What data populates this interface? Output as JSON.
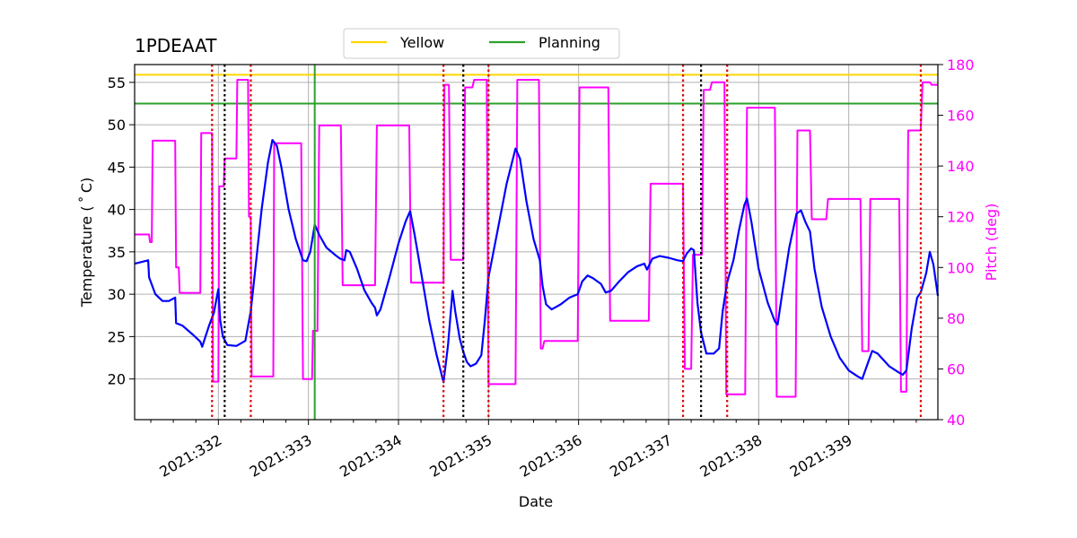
{
  "chart_data": {
    "type": "line",
    "title": "1PDEAAT",
    "xlabel": "Date",
    "ylabel": "Temperature ($^\\circ$C)",
    "ylabel_display": "Temperature ( ˚ C)",
    "y2label": "Pitch (deg)",
    "xlim": [
      331.07,
      339.99
    ],
    "ylim": [
      15.2,
      57.1
    ],
    "y2lim": [
      40,
      180
    ],
    "x_ticks": [
      332,
      333,
      334,
      335,
      336,
      337,
      338,
      339
    ],
    "x_tick_labels": [
      "2021:332",
      "2021:333",
      "2021:334",
      "2021:335",
      "2021:336",
      "2021:337",
      "2021:338",
      "2021:339"
    ],
    "y_ticks": [
      20,
      25,
      30,
      35,
      40,
      45,
      50,
      55
    ],
    "y2_ticks": [
      40,
      60,
      80,
      100,
      120,
      140,
      160,
      180
    ],
    "grid": true,
    "legend": {
      "placement": "top-center",
      "entries": [
        {
          "label": "Yellow",
          "color": "#ffd700"
        },
        {
          "label": "Planning",
          "color": "#2ca02c"
        }
      ]
    },
    "limits": {
      "yellow": 55.9,
      "planning": 52.5
    },
    "colors": {
      "temperature": "#0000ff",
      "pitch": "#ff00ff",
      "yellow": "#ffd700",
      "planning": "#2ca02c",
      "red_lines": "#e00000",
      "black_lines": "#000000",
      "grid": "#b0b0b0"
    },
    "red_dotted_lines": [
      331.93,
      332.36,
      334.5,
      335.0,
      337.16,
      337.65,
      339.8
    ],
    "black_dotted_lines": [
      332.07,
      334.72,
      337.36
    ],
    "green_vertical_lines": [
      333.07
    ],
    "series": [
      {
        "name": "Temperature",
        "axis": "left",
        "points": [
          [
            331.07,
            33.6
          ],
          [
            331.22,
            34.0
          ],
          [
            331.23,
            32.0
          ],
          [
            331.3,
            30.0
          ],
          [
            331.38,
            29.2
          ],
          [
            331.45,
            29.2
          ],
          [
            331.52,
            29.6
          ],
          [
            331.53,
            26.6
          ],
          [
            331.6,
            26.3
          ],
          [
            331.72,
            25.2
          ],
          [
            331.8,
            24.4
          ],
          [
            331.82,
            23.8
          ],
          [
            331.85,
            24.8
          ],
          [
            331.9,
            26.4
          ],
          [
            331.95,
            27.8
          ],
          [
            331.98,
            29.5
          ],
          [
            332.0,
            30.6
          ],
          [
            332.02,
            27.0
          ],
          [
            332.05,
            25.0
          ],
          [
            332.1,
            24.0
          ],
          [
            332.2,
            23.9
          ],
          [
            332.3,
            24.5
          ],
          [
            332.36,
            28.0
          ],
          [
            332.42,
            34.0
          ],
          [
            332.48,
            40.0
          ],
          [
            332.55,
            45.5
          ],
          [
            332.6,
            48.2
          ],
          [
            332.65,
            47.5
          ],
          [
            332.7,
            45.0
          ],
          [
            332.78,
            40.0
          ],
          [
            332.86,
            36.5
          ],
          [
            332.94,
            34.0
          ],
          [
            332.98,
            33.9
          ],
          [
            333.02,
            35.0
          ],
          [
            333.07,
            38.2
          ],
          [
            333.12,
            37.0
          ],
          [
            333.2,
            35.5
          ],
          [
            333.3,
            34.6
          ],
          [
            333.35,
            34.2
          ],
          [
            333.4,
            34.0
          ],
          [
            333.42,
            35.2
          ],
          [
            333.46,
            35.0
          ],
          [
            333.54,
            33.0
          ],
          [
            333.62,
            30.5
          ],
          [
            333.7,
            29.0
          ],
          [
            333.74,
            28.4
          ],
          [
            333.76,
            27.5
          ],
          [
            333.8,
            28.2
          ],
          [
            333.9,
            32.0
          ],
          [
            334.0,
            36.0
          ],
          [
            334.08,
            38.6
          ],
          [
            334.13,
            39.8
          ],
          [
            334.18,
            37.0
          ],
          [
            334.26,
            32.0
          ],
          [
            334.34,
            27.0
          ],
          [
            334.42,
            23.0
          ],
          [
            334.5,
            19.6
          ],
          [
            334.55,
            24.0
          ],
          [
            334.6,
            30.4
          ],
          [
            334.63,
            28.0
          ],
          [
            334.68,
            24.8
          ],
          [
            334.72,
            23.2
          ],
          [
            334.76,
            22.0
          ],
          [
            334.8,
            21.5
          ],
          [
            334.86,
            21.8
          ],
          [
            334.92,
            22.8
          ],
          [
            334.96,
            27.0
          ],
          [
            335.0,
            32.0
          ],
          [
            335.1,
            37.5
          ],
          [
            335.2,
            43.0
          ],
          [
            335.3,
            47.2
          ],
          [
            335.35,
            46.0
          ],
          [
            335.42,
            41.0
          ],
          [
            335.5,
            36.5
          ],
          [
            335.57,
            34.0
          ],
          [
            335.6,
            31.0
          ],
          [
            335.64,
            28.8
          ],
          [
            335.7,
            28.2
          ],
          [
            335.8,
            28.8
          ],
          [
            335.9,
            29.6
          ],
          [
            335.99,
            30.0
          ],
          [
            336.04,
            31.5
          ],
          [
            336.1,
            32.2
          ],
          [
            336.16,
            31.9
          ],
          [
            336.25,
            31.2
          ],
          [
            336.3,
            30.2
          ],
          [
            336.36,
            30.4
          ],
          [
            336.45,
            31.5
          ],
          [
            336.55,
            32.6
          ],
          [
            336.65,
            33.3
          ],
          [
            336.73,
            33.6
          ],
          [
            336.76,
            32.9
          ],
          [
            336.82,
            34.2
          ],
          [
            336.9,
            34.5
          ],
          [
            337.0,
            34.3
          ],
          [
            337.1,
            34.0
          ],
          [
            337.16,
            33.9
          ],
          [
            337.2,
            34.8
          ],
          [
            337.25,
            35.4
          ],
          [
            337.28,
            35.2
          ],
          [
            337.32,
            29.0
          ],
          [
            337.36,
            25.5
          ],
          [
            337.42,
            23.0
          ],
          [
            337.5,
            23.0
          ],
          [
            337.56,
            23.6
          ],
          [
            337.6,
            28.0
          ],
          [
            337.65,
            31.4
          ],
          [
            337.72,
            34.0
          ],
          [
            337.78,
            37.5
          ],
          [
            337.84,
            40.5
          ],
          [
            337.87,
            41.3
          ],
          [
            337.92,
            38.5
          ],
          [
            338.0,
            33.0
          ],
          [
            338.1,
            29.0
          ],
          [
            338.18,
            26.8
          ],
          [
            338.21,
            26.4
          ],
          [
            338.26,
            30.0
          ],
          [
            338.34,
            35.5
          ],
          [
            338.42,
            39.5
          ],
          [
            338.47,
            39.9
          ],
          [
            338.52,
            38.5
          ],
          [
            338.57,
            37.4
          ],
          [
            338.62,
            33.0
          ],
          [
            338.7,
            28.5
          ],
          [
            338.8,
            25.0
          ],
          [
            338.9,
            22.5
          ],
          [
            339.0,
            21.0
          ],
          [
            339.1,
            20.3
          ],
          [
            339.15,
            20.0
          ],
          [
            339.2,
            21.5
          ],
          [
            339.26,
            23.3
          ],
          [
            339.32,
            23.0
          ],
          [
            339.45,
            21.5
          ],
          [
            339.55,
            20.8
          ],
          [
            339.6,
            20.5
          ],
          [
            339.64,
            21.0
          ],
          [
            339.7,
            26.0
          ],
          [
            339.76,
            29.6
          ],
          [
            339.8,
            30.2
          ],
          [
            339.86,
            32.5
          ],
          [
            339.9,
            35.0
          ],
          [
            339.94,
            33.5
          ],
          [
            339.99,
            29.8
          ]
        ]
      },
      {
        "name": "Pitch",
        "axis": "right",
        "points": [
          [
            331.07,
            113
          ],
          [
            331.23,
            113
          ],
          [
            331.24,
            110
          ],
          [
            331.26,
            110
          ],
          [
            331.27,
            150
          ],
          [
            331.52,
            150
          ],
          [
            331.53,
            100
          ],
          [
            331.56,
            100
          ],
          [
            331.57,
            90
          ],
          [
            331.8,
            90
          ],
          [
            331.81,
            153
          ],
          [
            331.93,
            153
          ],
          [
            331.94,
            55
          ],
          [
            332.0,
            55
          ],
          [
            332.01,
            132
          ],
          [
            332.06,
            132
          ],
          [
            332.07,
            143
          ],
          [
            332.2,
            143
          ],
          [
            332.21,
            174
          ],
          [
            332.33,
            174
          ],
          [
            332.34,
            120
          ],
          [
            332.36,
            120
          ],
          [
            332.37,
            57
          ],
          [
            332.61,
            57
          ],
          [
            332.62,
            149
          ],
          [
            332.92,
            149
          ],
          [
            332.94,
            56
          ],
          [
            333.04,
            56
          ],
          [
            333.05,
            75
          ],
          [
            333.1,
            75
          ],
          [
            333.12,
            156
          ],
          [
            333.36,
            156
          ],
          [
            333.38,
            93
          ],
          [
            333.74,
            93
          ],
          [
            333.76,
            156
          ],
          [
            334.12,
            156
          ],
          [
            334.14,
            94
          ],
          [
            334.5,
            94
          ],
          [
            334.51,
            172
          ],
          [
            334.56,
            172
          ],
          [
            334.58,
            103
          ],
          [
            334.72,
            103
          ],
          [
            334.74,
            171
          ],
          [
            334.82,
            171
          ],
          [
            334.84,
            174
          ],
          [
            334.98,
            174
          ],
          [
            335.0,
            54
          ],
          [
            335.3,
            54
          ],
          [
            335.32,
            174
          ],
          [
            335.56,
            174
          ],
          [
            335.58,
            68
          ],
          [
            335.6,
            68
          ],
          [
            335.62,
            71
          ],
          [
            335.99,
            71
          ],
          [
            336.01,
            171
          ],
          [
            336.33,
            171
          ],
          [
            336.35,
            79
          ],
          [
            336.78,
            79
          ],
          [
            336.8,
            133
          ],
          [
            337.16,
            133
          ],
          [
            337.18,
            60
          ],
          [
            337.25,
            60
          ],
          [
            337.27,
            105
          ],
          [
            337.37,
            105
          ],
          [
            337.39,
            170
          ],
          [
            337.46,
            170
          ],
          [
            337.48,
            173
          ],
          [
            337.62,
            173
          ],
          [
            337.64,
            50
          ],
          [
            337.85,
            50
          ],
          [
            337.87,
            163
          ],
          [
            338.18,
            163
          ],
          [
            338.2,
            49
          ],
          [
            338.41,
            49
          ],
          [
            338.43,
            154
          ],
          [
            338.57,
            154
          ],
          [
            338.59,
            119
          ],
          [
            338.75,
            119
          ],
          [
            338.77,
            127
          ],
          [
            339.13,
            127
          ],
          [
            339.15,
            67
          ],
          [
            339.22,
            67
          ],
          [
            339.24,
            127
          ],
          [
            339.56,
            127
          ],
          [
            339.58,
            51
          ],
          [
            339.64,
            51
          ],
          [
            339.66,
            154
          ],
          [
            339.8,
            154
          ],
          [
            339.82,
            173
          ],
          [
            339.9,
            173
          ],
          [
            339.92,
            172
          ],
          [
            339.99,
            172
          ]
        ]
      }
    ]
  }
}
